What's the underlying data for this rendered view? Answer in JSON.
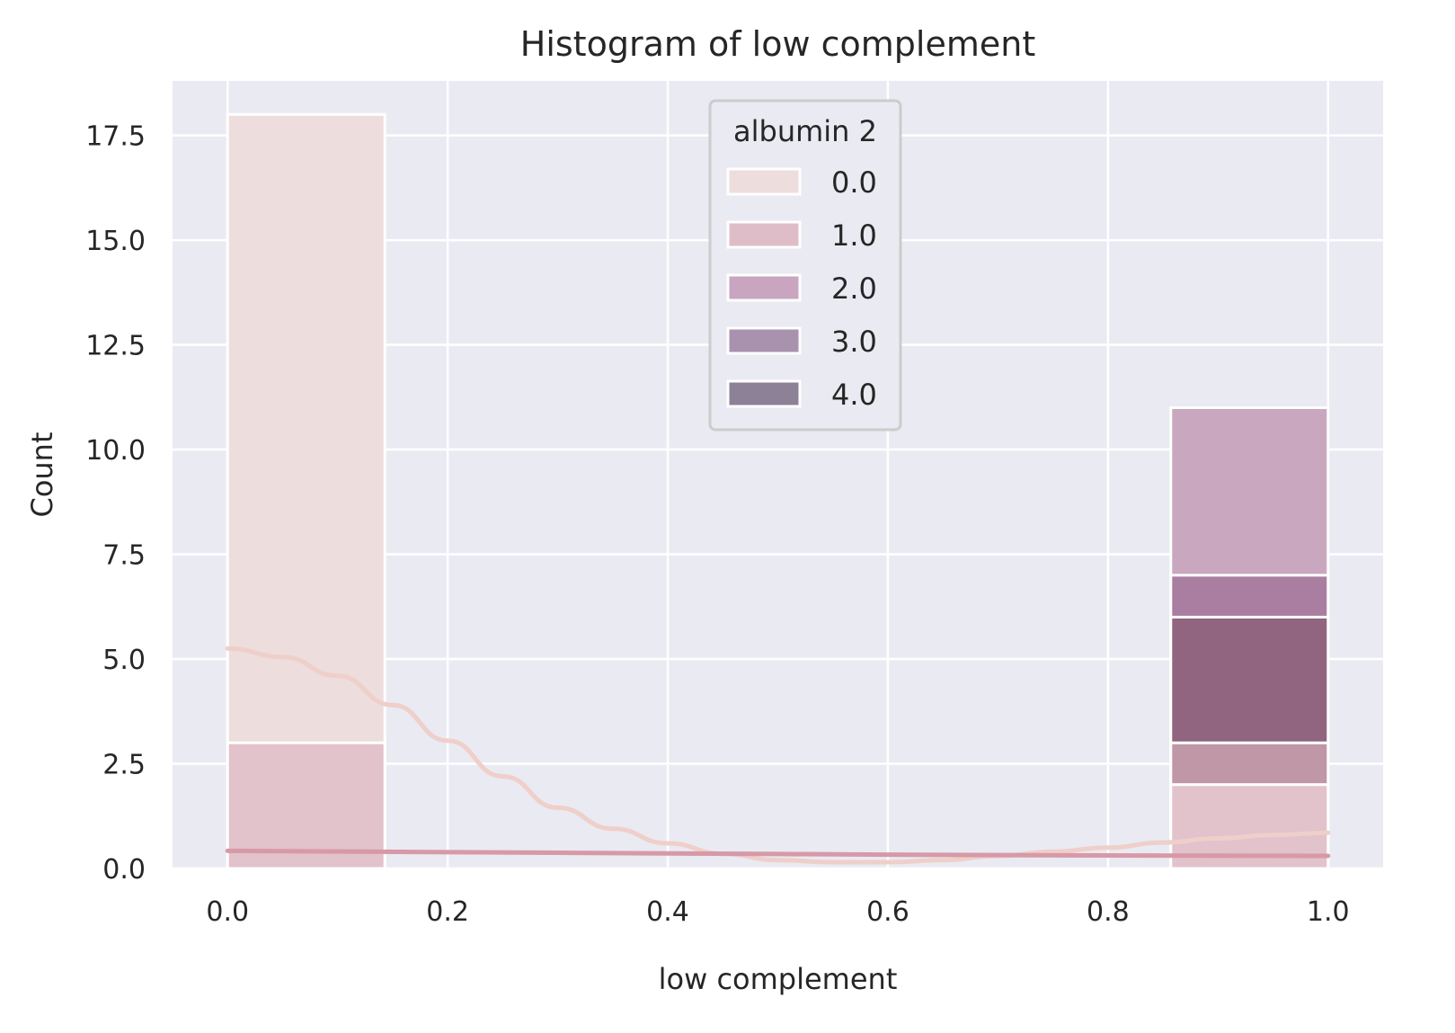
{
  "chart_data": {
    "type": "bar",
    "title": "Histogram of low complement",
    "xlabel": "low complement",
    "ylabel": "Count",
    "xlim": [
      -0.05,
      1.05
    ],
    "ylim": [
      0,
      18.8
    ],
    "xticks": [
      0.0,
      0.2,
      0.4,
      0.6,
      0.8,
      1.0
    ],
    "xtick_labels": [
      "0.0",
      "0.2",
      "0.4",
      "0.6",
      "0.8",
      "1.0"
    ],
    "yticks": [
      0.0,
      2.5,
      5.0,
      7.5,
      10.0,
      12.5,
      15.0,
      17.5
    ],
    "ytick_labels": [
      "0.0",
      "2.5",
      "5.0",
      "7.5",
      "10.0",
      "12.5",
      "15.0",
      "17.5"
    ],
    "grid": true,
    "background": "#eaeaf2",
    "legend": {
      "title": "albumin 2",
      "placement": "top-center",
      "entries": [
        {
          "label": "0.0",
          "color": "#eddddd"
        },
        {
          "label": "1.0",
          "color": "#dfbdc8"
        },
        {
          "label": "2.0",
          "color": "#c9a5bf"
        },
        {
          "label": "3.0",
          "color": "#a992ae"
        },
        {
          "label": "4.0",
          "color": "#8c8197"
        }
      ]
    },
    "bins": [
      [
        0.0,
        0.1429
      ],
      [
        0.8571,
        1.0
      ]
    ],
    "series": [
      {
        "name": "0.0",
        "color": "#eddddd",
        "values": [
          18,
          0
        ]
      },
      {
        "name": "1.0",
        "color": "#e2c2cb",
        "values": [
          3,
          2
        ]
      },
      {
        "name": "2.0",
        "color": "#c9a7bf",
        "values": [
          0,
          11
        ]
      },
      {
        "name": "3.0",
        "color": "#a97ea0",
        "values": [
          0,
          7
        ]
      },
      {
        "name": "4.0",
        "color": "#91647f",
        "values": [
          0,
          6
        ]
      }
    ],
    "overlay_bars": [
      {
        "bin": 1,
        "bottom": 0,
        "top": 3,
        "color": "#bf97a6"
      },
      {
        "bin": 1,
        "bottom": 0,
        "top": 2,
        "color": "#d3a5ae"
      },
      {
        "bin": 1,
        "bottom": 3,
        "top": 6,
        "color": "#91647f"
      }
    ],
    "kde": [
      {
        "name": "0.0",
        "color": "#efcfc9",
        "x": [
          0.0,
          0.05,
          0.1,
          0.15,
          0.2,
          0.25,
          0.3,
          0.35,
          0.4,
          0.45,
          0.5,
          0.55,
          0.6,
          0.65,
          0.7,
          0.75,
          0.8,
          0.85,
          0.9,
          0.95,
          1.0
        ],
        "y": [
          5.25,
          5.05,
          4.6,
          3.9,
          3.05,
          2.2,
          1.45,
          0.95,
          0.6,
          0.35,
          0.2,
          0.15,
          0.15,
          0.2,
          0.3,
          0.4,
          0.5,
          0.62,
          0.72,
          0.8,
          0.85
        ]
      },
      {
        "name": "1.0",
        "color": "#d799a8",
        "x": [
          0.0,
          0.2,
          0.4,
          0.6,
          0.8,
          1.0
        ],
        "y": [
          0.42,
          0.39,
          0.36,
          0.33,
          0.31,
          0.3
        ]
      }
    ]
  }
}
